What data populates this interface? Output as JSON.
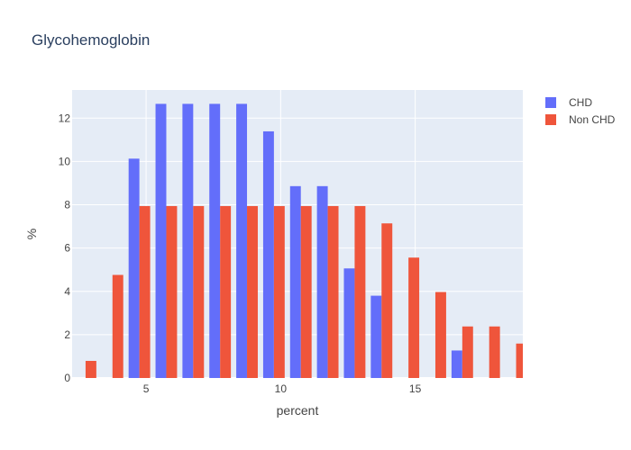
{
  "chart_data": {
    "type": "bar",
    "title": "Glycohemoglobin",
    "xlabel": "percent",
    "ylabel": "%",
    "xlim": [
      2.25,
      19.0
    ],
    "ylim": [
      0,
      13.3
    ],
    "x_ticks": [
      5,
      10,
      15
    ],
    "y_ticks": [
      0,
      2,
      4,
      6,
      8,
      10,
      12
    ],
    "bin_start": 2.25,
    "bin_width": 1.0,
    "grid": true,
    "legend_position": "top-right",
    "series": [
      {
        "name": "CHD",
        "color": "#636efa",
        "values": [
          0,
          0,
          10.13,
          12.66,
          12.66,
          12.66,
          12.66,
          11.39,
          8.86,
          8.86,
          5.06,
          3.8,
          0,
          0,
          1.27,
          0,
          0
        ]
      },
      {
        "name": "Non CHD",
        "color": "#ef553b",
        "values": [
          0.79,
          4.76,
          7.94,
          7.94,
          7.94,
          7.94,
          7.94,
          7.94,
          7.94,
          7.94,
          7.94,
          7.14,
          5.56,
          3.97,
          2.38,
          2.38,
          1.59
        ]
      }
    ]
  }
}
